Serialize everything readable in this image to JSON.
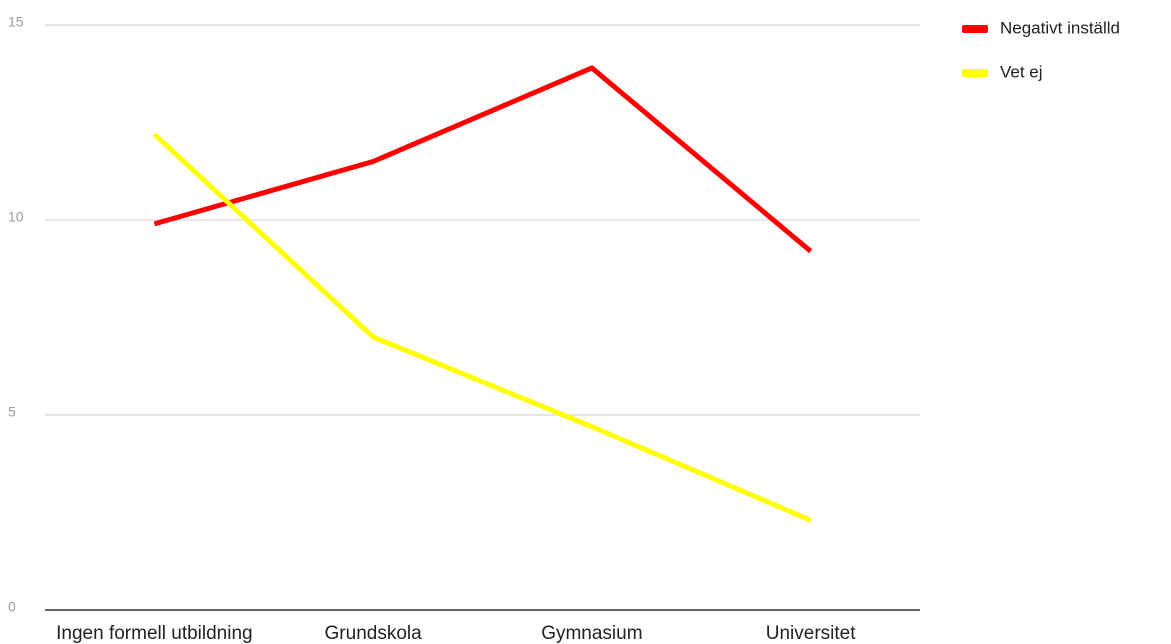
{
  "chart_data": {
    "type": "line",
    "categories": [
      "Ingen formell utbildning",
      "Grundskola",
      "Gymnasium",
      "Universitet"
    ],
    "series": [
      {
        "name": "Negativt inställd",
        "color": "#ff0000",
        "values": [
          9.9,
          11.5,
          13.9,
          9.2
        ]
      },
      {
        "name": "Vet ej",
        "color": "#ffff00",
        "values": [
          12.2,
          7.0,
          4.7,
          2.3
        ]
      }
    ],
    "ylim": [
      0,
      15
    ],
    "yticks": [
      0,
      5,
      10,
      15
    ],
    "grid": true,
    "legend": "right"
  }
}
